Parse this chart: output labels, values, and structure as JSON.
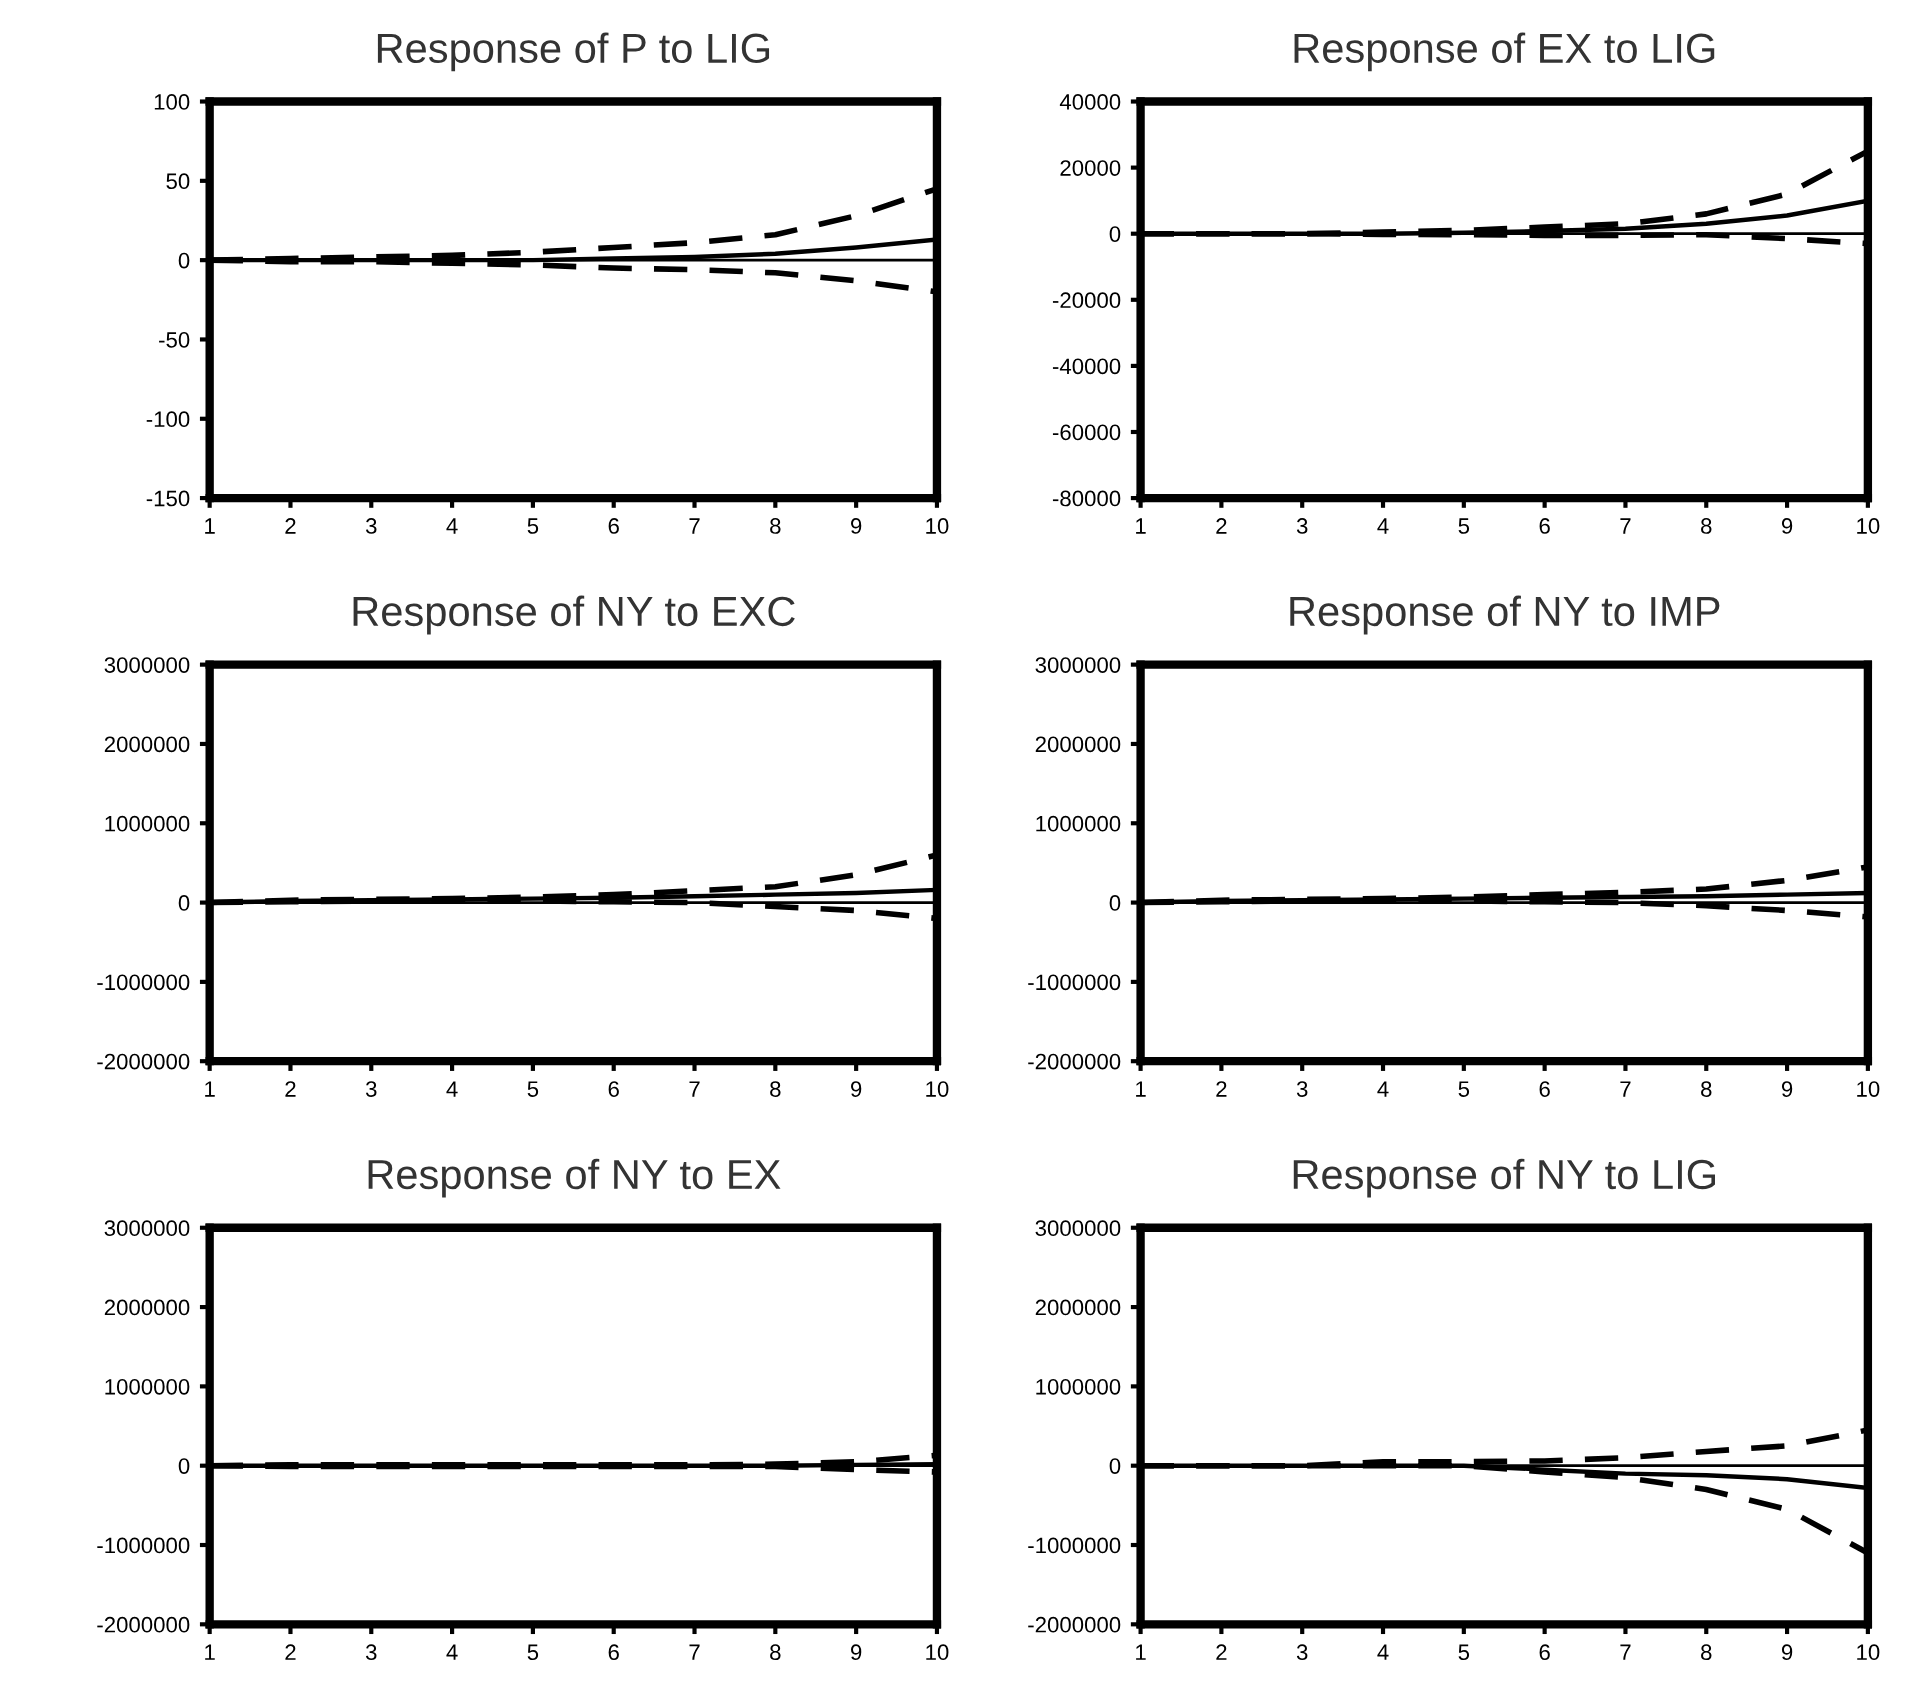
{
  "chart_data": [
    {
      "type": "line",
      "title": "Response of P to LIG",
      "x": [
        1,
        2,
        3,
        4,
        5,
        6,
        7,
        8,
        9,
        10
      ],
      "xlim": [
        1,
        10
      ],
      "xticks": [
        1,
        2,
        3,
        4,
        5,
        6,
        7,
        8,
        9,
        10
      ],
      "ylim": [
        -150,
        100
      ],
      "yticks": [
        -150,
        -100,
        -50,
        0,
        50,
        100
      ],
      "ref_lines": [
        {
          "axis": "y",
          "value": 0,
          "color": "#000000",
          "line_style": "solid"
        }
      ],
      "series": [
        {
          "color": "#000000",
          "line_style": "solid",
          "values": [
            0,
            0,
            0,
            0,
            0,
            1,
            2,
            4,
            8,
            13
          ]
        },
        {
          "color": "#000000",
          "line_style": "dashed",
          "values": [
            0,
            1,
            2,
            3,
            5,
            8,
            11,
            16,
            28,
            45
          ]
        },
        {
          "color": "#000000",
          "line_style": "dashed",
          "values": [
            0,
            -1,
            -1,
            -2,
            -3,
            -5,
            -6,
            -8,
            -13,
            -20
          ]
        }
      ]
    },
    {
      "type": "line",
      "title": "Response of EX to LIG",
      "x": [
        1,
        2,
        3,
        4,
        5,
        6,
        7,
        8,
        9,
        10
      ],
      "xlim": [
        1,
        10
      ],
      "xticks": [
        1,
        2,
        3,
        4,
        5,
        6,
        7,
        8,
        9,
        10
      ],
      "ylim": [
        -80000,
        40000
      ],
      "yticks": [
        -80000,
        -60000,
        -40000,
        -20000,
        0,
        20000,
        40000
      ],
      "ref_lines": [
        {
          "axis": "y",
          "value": 0,
          "color": "#000000",
          "line_style": "solid"
        }
      ],
      "series": [
        {
          "color": "#000000",
          "line_style": "solid",
          "values": [
            0,
            0,
            0,
            0,
            300,
            800,
            1500,
            3000,
            5500,
            10000
          ]
        },
        {
          "color": "#000000",
          "line_style": "dashed",
          "values": [
            0,
            0,
            0,
            500,
            1000,
            2000,
            3000,
            6000,
            12000,
            25000
          ]
        },
        {
          "color": "#000000",
          "line_style": "dashed",
          "values": [
            0,
            0,
            0,
            -200,
            -300,
            -500,
            -500,
            -300,
            -1500,
            -3000
          ]
        }
      ]
    },
    {
      "type": "line",
      "title": "Response of NY to EXC",
      "x": [
        1,
        2,
        3,
        4,
        5,
        6,
        7,
        8,
        9,
        10
      ],
      "xlim": [
        1,
        10
      ],
      "xticks": [
        1,
        2,
        3,
        4,
        5,
        6,
        7,
        8,
        9,
        10
      ],
      "ylim": [
        -2000000,
        3000000
      ],
      "yticks": [
        -2000000,
        -1000000,
        0,
        1000000,
        2000000,
        3000000
      ],
      "ref_lines": [
        {
          "axis": "y",
          "value": 0,
          "color": "#000000",
          "line_style": "solid"
        }
      ],
      "series": [
        {
          "color": "#000000",
          "line_style": "solid",
          "values": [
            0,
            20000,
            30000,
            40000,
            50000,
            60000,
            80000,
            100000,
            120000,
            160000
          ]
        },
        {
          "color": "#000000",
          "line_style": "dashed",
          "values": [
            0,
            30000,
            40000,
            50000,
            70000,
            100000,
            150000,
            200000,
            350000,
            600000
          ]
        },
        {
          "color": "#000000",
          "line_style": "dashed",
          "values": [
            0,
            10000,
            20000,
            20000,
            20000,
            10000,
            0,
            -50000,
            -100000,
            -200000
          ]
        }
      ]
    },
    {
      "type": "line",
      "title": "Response of NY to IMP",
      "x": [
        1,
        2,
        3,
        4,
        5,
        6,
        7,
        8,
        9,
        10
      ],
      "xlim": [
        1,
        10
      ],
      "xticks": [
        1,
        2,
        3,
        4,
        5,
        6,
        7,
        8,
        9,
        10
      ],
      "ylim": [
        -2000000,
        3000000
      ],
      "yticks": [
        -2000000,
        -1000000,
        0,
        1000000,
        2000000,
        3000000
      ],
      "ref_lines": [
        {
          "axis": "y",
          "value": 0,
          "color": "#000000",
          "line_style": "solid"
        }
      ],
      "series": [
        {
          "color": "#000000",
          "line_style": "solid",
          "values": [
            0,
            20000,
            30000,
            40000,
            50000,
            60000,
            70000,
            80000,
            100000,
            120000
          ]
        },
        {
          "color": "#000000",
          "line_style": "dashed",
          "values": [
            0,
            30000,
            40000,
            50000,
            70000,
            100000,
            130000,
            170000,
            280000,
            450000
          ]
        },
        {
          "color": "#000000",
          "line_style": "dashed",
          "values": [
            0,
            10000,
            20000,
            20000,
            20000,
            10000,
            0,
            -40000,
            -100000,
            -180000
          ]
        }
      ]
    },
    {
      "type": "line",
      "title": "Response of NY to EX",
      "x": [
        1,
        2,
        3,
        4,
        5,
        6,
        7,
        8,
        9,
        10
      ],
      "xlim": [
        1,
        10
      ],
      "xticks": [
        1,
        2,
        3,
        4,
        5,
        6,
        7,
        8,
        9,
        10
      ],
      "ylim": [
        -2000000,
        3000000
      ],
      "yticks": [
        -2000000,
        -1000000,
        0,
        1000000,
        2000000,
        3000000
      ],
      "ref_lines": [
        {
          "axis": "y",
          "value": 0,
          "color": "#000000",
          "line_style": "solid"
        }
      ],
      "series": [
        {
          "color": "#000000",
          "line_style": "solid",
          "values": [
            0,
            0,
            0,
            0,
            0,
            0,
            0,
            0,
            10000,
            20000
          ]
        },
        {
          "color": "#000000",
          "line_style": "dashed",
          "values": [
            0,
            10000,
            10000,
            10000,
            10000,
            10000,
            10000,
            20000,
            50000,
            130000
          ]
        },
        {
          "color": "#000000",
          "line_style": "dashed",
          "values": [
            0,
            -10000,
            -10000,
            -10000,
            -10000,
            -10000,
            -10000,
            -10000,
            -50000,
            -80000
          ]
        }
      ]
    },
    {
      "type": "line",
      "title": "Response of NY to LIG",
      "x": [
        1,
        2,
        3,
        4,
        5,
        6,
        7,
        8,
        9,
        10
      ],
      "xlim": [
        1,
        10
      ],
      "xticks": [
        1,
        2,
        3,
        4,
        5,
        6,
        7,
        8,
        9,
        10
      ],
      "ylim": [
        -2000000,
        3000000
      ],
      "yticks": [
        -2000000,
        -1000000,
        0,
        1000000,
        2000000,
        3000000
      ],
      "ref_lines": [
        {
          "axis": "y",
          "value": 0,
          "color": "#000000",
          "line_style": "solid"
        }
      ],
      "series": [
        {
          "color": "#000000",
          "line_style": "solid",
          "values": [
            0,
            0,
            0,
            0,
            0,
            -50000,
            -100000,
            -120000,
            -170000,
            -280000
          ]
        },
        {
          "color": "#000000",
          "line_style": "dashed",
          "values": [
            0,
            0,
            0,
            50000,
            50000,
            60000,
            100000,
            180000,
            250000,
            450000
          ]
        },
        {
          "color": "#000000",
          "line_style": "dashed",
          "values": [
            0,
            0,
            0,
            0,
            0,
            -80000,
            -150000,
            -300000,
            -550000,
            -1100000
          ]
        }
      ]
    }
  ]
}
